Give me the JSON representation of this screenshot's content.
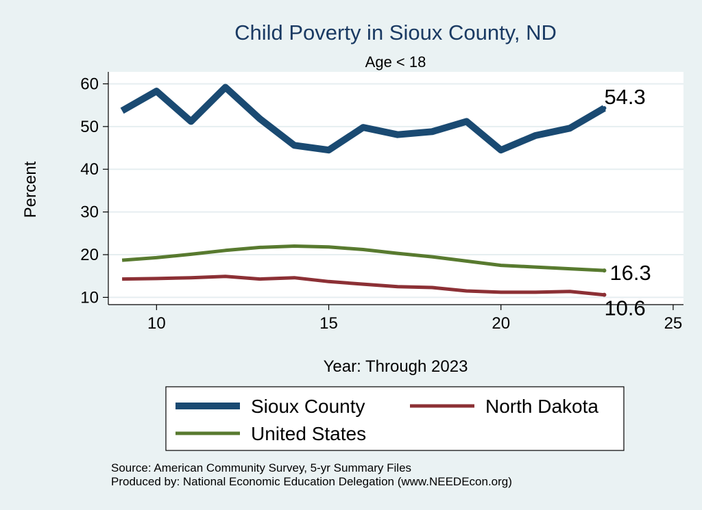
{
  "chart_data": {
    "type": "line",
    "title": "Child Poverty in Sioux County, ND",
    "subtitle": "Age < 18",
    "xlabel": "Year: Through 2023",
    "ylabel": "Percent",
    "xlim": [
      8.6,
      25.3
    ],
    "ylim": [
      8.3,
      62.8
    ],
    "xticks": [
      10,
      15,
      20,
      25
    ],
    "yticks": [
      10,
      20,
      30,
      40,
      50,
      60
    ],
    "grid": true,
    "legend_position": "bottom",
    "x": [
      9,
      10,
      11,
      12,
      13,
      14,
      15,
      16,
      17,
      18,
      19,
      20,
      21,
      22,
      23
    ],
    "series": [
      {
        "name": "Sioux County",
        "color": "#1a4a72",
        "values": [
          53.7,
          58.3,
          51.2,
          59.2,
          51.8,
          45.6,
          44.5,
          49.8,
          48.1,
          48.8,
          51.2,
          44.5,
          47.9,
          49.6,
          54.3
        ],
        "end_label": "54.3"
      },
      {
        "name": "North Dakota",
        "color": "#8c3035",
        "values": [
          14.3,
          14.4,
          14.6,
          14.9,
          14.3,
          14.6,
          13.7,
          13.1,
          12.5,
          12.3,
          11.5,
          11.2,
          11.2,
          11.4,
          10.6
        ],
        "end_label": "10.6"
      },
      {
        "name": "United States",
        "color": "#587a2f",
        "values": [
          18.7,
          19.3,
          20.1,
          21.0,
          21.7,
          22.0,
          21.8,
          21.2,
          20.3,
          19.5,
          18.5,
          17.5,
          17.1,
          16.7,
          16.3
        ],
        "end_label": "16.3"
      }
    ],
    "notes": [
      "Source: American Community Survey, 5-yr Summary Files",
      "Produced by: National Economic Education Delegation (www.NEEDEcon.org)"
    ]
  }
}
